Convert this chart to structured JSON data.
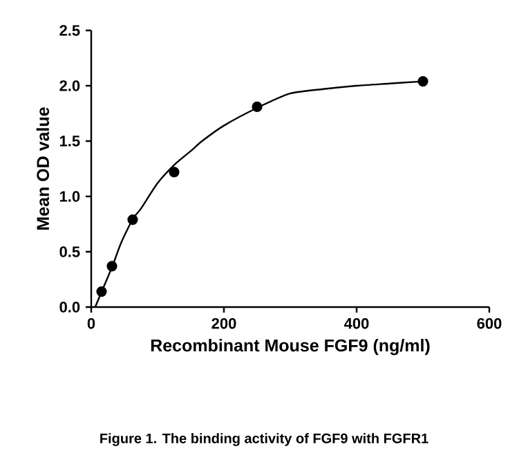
{
  "chart_data": {
    "type": "scatter",
    "xlabel": "Recombinant Mouse FGF9 (ng/ml)",
    "ylabel": "Mean OD value",
    "annotations": [
      "Figure 1. The binding activity of FGF9 with FGFR1"
    ],
    "xlim": [
      0,
      600
    ],
    "ylim": [
      0,
      2.5
    ],
    "xticks": [
      0,
      200,
      400,
      600
    ],
    "yticks": [
      {
        "value": 0,
        "label": "0.0"
      },
      {
        "value": 0.5,
        "label": "0.5"
      },
      {
        "value": 1,
        "label": "1.0"
      },
      {
        "value": 1.5,
        "label": "1.5"
      },
      {
        "value": 2,
        "label": "2.0"
      },
      {
        "value": 2.5,
        "label": "2.5"
      }
    ],
    "grid": false,
    "series": [
      {
        "color": "#000000",
        "marker": "circle",
        "x": [
          15.6,
          31.25,
          62.5,
          125,
          250,
          500
        ],
        "values": [
          0.14,
          0.37,
          0.79,
          1.22,
          1.81,
          2.04
        ]
      },
      {
        "type": "line",
        "color": "#000000",
        "marker": "none",
        "line_style": "solid",
        "x": [
          6,
          20,
          32,
          45,
          63,
          75,
          100,
          126,
          150,
          167,
          200,
          250,
          300,
          350,
          400,
          450,
          500
        ],
        "values": [
          0,
          0.2,
          0.37,
          0.58,
          0.8,
          0.89,
          1.12,
          1.29,
          1.41,
          1.5,
          1.64,
          1.8,
          1.93,
          1.97,
          2.0,
          2.02,
          2.04
        ]
      }
    ]
  }
}
